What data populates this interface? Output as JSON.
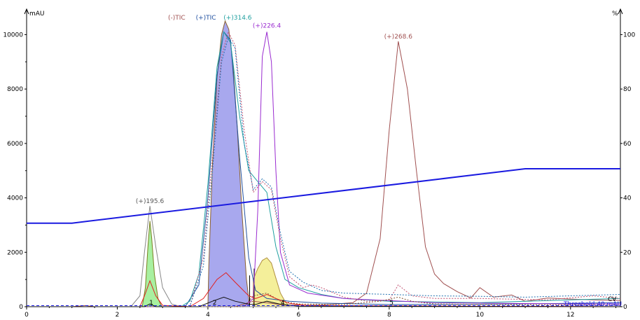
{
  "chart_data": {
    "type": "line",
    "left_axis": {
      "unit": "mAU",
      "ylim": [
        0,
        10500
      ],
      "ticks": [
        "0",
        "2000",
        "4000",
        "6000",
        "8000",
        "10000"
      ]
    },
    "right_axis": {
      "unit": "%",
      "ylim": [
        0,
        105
      ],
      "ticks": [
        "0",
        "20",
        "40",
        "60",
        "80",
        "100"
      ]
    },
    "x_axis": {
      "xlim": [
        0,
        13.1
      ],
      "ticks": [
        "0",
        "2",
        "4",
        "6",
        "8",
        "10",
        "12"
      ]
    },
    "legend": [
      "(-)TIC",
      "(+)TIC",
      "(+)314.6"
    ],
    "legend_colors": [
      "#a05050",
      "#2050a0",
      "#20a0a0"
    ],
    "peak_labels": [
      {
        "text": "(+)195.6",
        "x": 2.72,
        "y": 3700,
        "color": "#555555"
      },
      {
        "text": "(+)226.4",
        "x": 5.3,
        "y": 10150,
        "color": "#9a2bd0"
      },
      {
        "text": "(+)268.6",
        "x": 8.2,
        "y": 9750,
        "color": "#a05050"
      }
    ],
    "peak_numbers": [
      {
        "text": "1",
        "x": 2.75
      },
      {
        "text": "2",
        "x": 4.15
      },
      {
        "text": "4",
        "x": 5.65
      },
      {
        "text": "5",
        "x": 8.05
      }
    ],
    "right_annotations": {
      "cv": "CV",
      "threshold": "Threshold 40 mAU"
    },
    "series": [
      {
        "name": "(-)TIC",
        "color": "#a05050",
        "dashed": false,
        "points": [
          [
            0,
            0
          ],
          [
            1.0,
            0
          ],
          [
            1.3,
            40
          ],
          [
            1.5,
            0
          ],
          [
            4.6,
            0
          ],
          [
            5.0,
            200
          ],
          [
            5.7,
            60
          ],
          [
            6.5,
            60
          ],
          [
            7.2,
            150
          ],
          [
            7.5,
            500
          ],
          [
            7.8,
            2500
          ],
          [
            8.0,
            6500
          ],
          [
            8.2,
            9750
          ],
          [
            8.4,
            8000
          ],
          [
            8.6,
            5000
          ],
          [
            8.8,
            2200
          ],
          [
            9.0,
            1200
          ],
          [
            9.2,
            850
          ],
          [
            9.5,
            550
          ],
          [
            9.8,
            320
          ],
          [
            10.0,
            700
          ],
          [
            10.3,
            350
          ],
          [
            10.7,
            430
          ],
          [
            11.0,
            200
          ],
          [
            11.5,
            320
          ],
          [
            12.0,
            280
          ],
          [
            12.5,
            250
          ],
          [
            13.1,
            230
          ]
        ]
      },
      {
        "name": "(+)TIC",
        "color": "#2050a0",
        "dashed": false,
        "points": [
          [
            0,
            0
          ],
          [
            3.5,
            0
          ],
          [
            3.8,
            800
          ],
          [
            4.0,
            4000
          ],
          [
            4.2,
            8500
          ],
          [
            4.35,
            10100
          ],
          [
            4.5,
            9800
          ],
          [
            4.7,
            5500
          ],
          [
            4.9,
            1800
          ],
          [
            5.05,
            600
          ],
          [
            5.3,
            300
          ],
          [
            5.8,
            200
          ],
          [
            6.5,
            130
          ],
          [
            8.0,
            80
          ],
          [
            10.0,
            90
          ],
          [
            12.0,
            120
          ],
          [
            13.1,
            150
          ]
        ]
      },
      {
        "name": "(+)314.6",
        "color": "#20a0a0",
        "dashed": false,
        "points": [
          [
            0,
            0
          ],
          [
            3.4,
            0
          ],
          [
            3.6,
            200
          ],
          [
            3.8,
            1200
          ],
          [
            4.0,
            4500
          ],
          [
            4.2,
            8800
          ],
          [
            4.35,
            10100
          ],
          [
            4.5,
            9700
          ],
          [
            4.7,
            7000
          ],
          [
            4.9,
            5000
          ],
          [
            5.1,
            4600
          ],
          [
            5.3,
            4200
          ],
          [
            5.5,
            2200
          ],
          [
            5.7,
            1000
          ],
          [
            6.0,
            700
          ],
          [
            6.5,
            450
          ],
          [
            7.0,
            300
          ],
          [
            8.0,
            200
          ],
          [
            10.0,
            150
          ],
          [
            12.0,
            250
          ],
          [
            13.1,
            300
          ]
        ]
      },
      {
        "name": "(+)226.4",
        "color": "#9a2bd0",
        "dashed": false,
        "points": [
          [
            0,
            0
          ],
          [
            4.8,
            0
          ],
          [
            5.0,
            300
          ],
          [
            5.1,
            3500
          ],
          [
            5.2,
            9200
          ],
          [
            5.3,
            10100
          ],
          [
            5.4,
            9000
          ],
          [
            5.5,
            5000
          ],
          [
            5.6,
            2000
          ],
          [
            5.8,
            800
          ],
          [
            6.2,
            500
          ],
          [
            7.0,
            300
          ],
          [
            9.0,
            150
          ],
          [
            12.0,
            100
          ],
          [
            13.1,
            100
          ]
        ]
      },
      {
        "name": "(+)195.6",
        "color": "#888888",
        "dashed": false,
        "points": [
          [
            0,
            0
          ],
          [
            2.3,
            0
          ],
          [
            2.5,
            400
          ],
          [
            2.6,
            2000
          ],
          [
            2.72,
            3700
          ],
          [
            2.85,
            2200
          ],
          [
            3.0,
            700
          ],
          [
            3.2,
            100
          ],
          [
            3.4,
            0
          ],
          [
            13.1,
            0
          ]
        ]
      },
      {
        "name": "dotted-1",
        "color": "#c05070",
        "dashed": true,
        "points": [
          [
            0,
            0
          ],
          [
            3.6,
            0
          ],
          [
            3.9,
            1800
          ],
          [
            4.1,
            5500
          ],
          [
            4.3,
            9200
          ],
          [
            4.45,
            10100
          ],
          [
            4.6,
            9600
          ],
          [
            4.8,
            6500
          ],
          [
            5.0,
            4200
          ],
          [
            5.2,
            4600
          ],
          [
            5.4,
            4300
          ],
          [
            5.6,
            2500
          ],
          [
            5.8,
            1100
          ],
          [
            6.1,
            700
          ],
          [
            6.3,
            800
          ],
          [
            6.5,
            700
          ],
          [
            7.0,
            350
          ],
          [
            7.5,
            200
          ],
          [
            8.0,
            250
          ],
          [
            8.2,
            800
          ],
          [
            8.5,
            400
          ],
          [
            9.0,
            300
          ],
          [
            10.0,
            300
          ],
          [
            11.5,
            250
          ],
          [
            12.5,
            400
          ],
          [
            13.1,
            300
          ]
        ]
      },
      {
        "name": "dotted-2",
        "color": "#2070b0",
        "dashed": true,
        "points": [
          [
            0,
            0
          ],
          [
            3.6,
            0
          ],
          [
            3.9,
            1500
          ],
          [
            4.1,
            5000
          ],
          [
            4.3,
            9000
          ],
          [
            4.45,
            9900
          ],
          [
            4.6,
            9500
          ],
          [
            4.8,
            6000
          ],
          [
            5.0,
            4300
          ],
          [
            5.2,
            4700
          ],
          [
            5.4,
            4400
          ],
          [
            5.6,
            2700
          ],
          [
            5.8,
            1300
          ],
          [
            6.1,
            900
          ],
          [
            6.5,
            600
          ],
          [
            7.0,
            500
          ],
          [
            8.0,
            450
          ],
          [
            9.0,
            400
          ],
          [
            10.0,
            380
          ],
          [
            11.0,
            350
          ],
          [
            12.0,
            400
          ],
          [
            13.1,
            450
          ]
        ]
      },
      {
        "name": "dotted-3",
        "color": "#805030",
        "dashed": true,
        "points": [
          [
            0,
            0
          ],
          [
            4.8,
            0
          ],
          [
            5.0,
            400
          ],
          [
            5.3,
            500
          ],
          [
            5.6,
            200
          ],
          [
            6.0,
            100
          ],
          [
            7.0,
            80
          ],
          [
            7.8,
            200
          ],
          [
            8.2,
            350
          ],
          [
            8.5,
            200
          ],
          [
            9.0,
            100
          ],
          [
            13.1,
            50
          ]
        ]
      },
      {
        "name": "uv-red",
        "color": "#e02020",
        "dashed": false,
        "points": [
          [
            0,
            0
          ],
          [
            2.5,
            0
          ],
          [
            2.6,
            400
          ],
          [
            2.72,
            950
          ],
          [
            2.85,
            400
          ],
          [
            3.0,
            50
          ],
          [
            3.6,
            0
          ],
          [
            3.9,
            300
          ],
          [
            4.2,
            1000
          ],
          [
            4.4,
            1250
          ],
          [
            4.6,
            900
          ],
          [
            4.9,
            400
          ],
          [
            5.05,
            300
          ],
          [
            5.3,
            450
          ],
          [
            5.5,
            300
          ],
          [
            5.8,
            120
          ],
          [
            6.2,
            40
          ],
          [
            13.1,
            0
          ]
        ]
      },
      {
        "name": "uv-black",
        "color": "#111111",
        "dashed": false,
        "points": [
          [
            0,
            0
          ],
          [
            2.6,
            0
          ],
          [
            2.72,
            100
          ],
          [
            2.85,
            0
          ],
          [
            3.8,
            0
          ],
          [
            4.1,
            200
          ],
          [
            4.35,
            350
          ],
          [
            4.6,
            200
          ],
          [
            4.9,
            90
          ],
          [
            5.05,
            80
          ],
          [
            5.3,
            200
          ],
          [
            5.6,
            90
          ],
          [
            6.0,
            20
          ],
          [
            13.1,
            0
          ]
        ]
      },
      {
        "name": "(+)TIC-gradient",
        "color": "#1a1ae0",
        "dashed": false,
        "points": [
          [
            0,
            3070
          ],
          [
            1.0,
            3070
          ],
          [
            11.0,
            5070
          ],
          [
            13.1,
            5070
          ]
        ]
      }
    ],
    "fills": [
      {
        "name": "peak-1-fill",
        "color": "#a8f0a0",
        "stroke": "#7a8020",
        "points": [
          [
            2.55,
            0
          ],
          [
            2.62,
            700
          ],
          [
            2.68,
            2300
          ],
          [
            2.72,
            3150
          ],
          [
            2.76,
            2500
          ],
          [
            2.82,
            1200
          ],
          [
            2.9,
            300
          ],
          [
            2.98,
            0
          ]
        ]
      },
      {
        "name": "peak-2-fill",
        "color": "#a8a8ee",
        "stroke": "#8a6030",
        "points": [
          [
            4.0,
            0
          ],
          [
            4.02,
            1500
          ],
          [
            4.1,
            5200
          ],
          [
            4.2,
            8400
          ],
          [
            4.3,
            10000
          ],
          [
            4.38,
            10500
          ],
          [
            4.46,
            10200
          ],
          [
            4.55,
            9000
          ],
          [
            4.65,
            6500
          ],
          [
            4.75,
            3500
          ],
          [
            4.85,
            1000
          ],
          [
            4.92,
            0
          ]
        ]
      },
      {
        "name": "peak-4-fill",
        "color": "#f4ef9a",
        "stroke": "#b09040",
        "points": [
          [
            5.0,
            0
          ],
          [
            5.0,
            1000
          ],
          [
            5.1,
            1400
          ],
          [
            5.2,
            1700
          ],
          [
            5.3,
            1800
          ],
          [
            5.4,
            1600
          ],
          [
            5.5,
            1050
          ],
          [
            5.6,
            500
          ],
          [
            5.7,
            200
          ],
          [
            5.8,
            0
          ]
        ]
      }
    ]
  }
}
